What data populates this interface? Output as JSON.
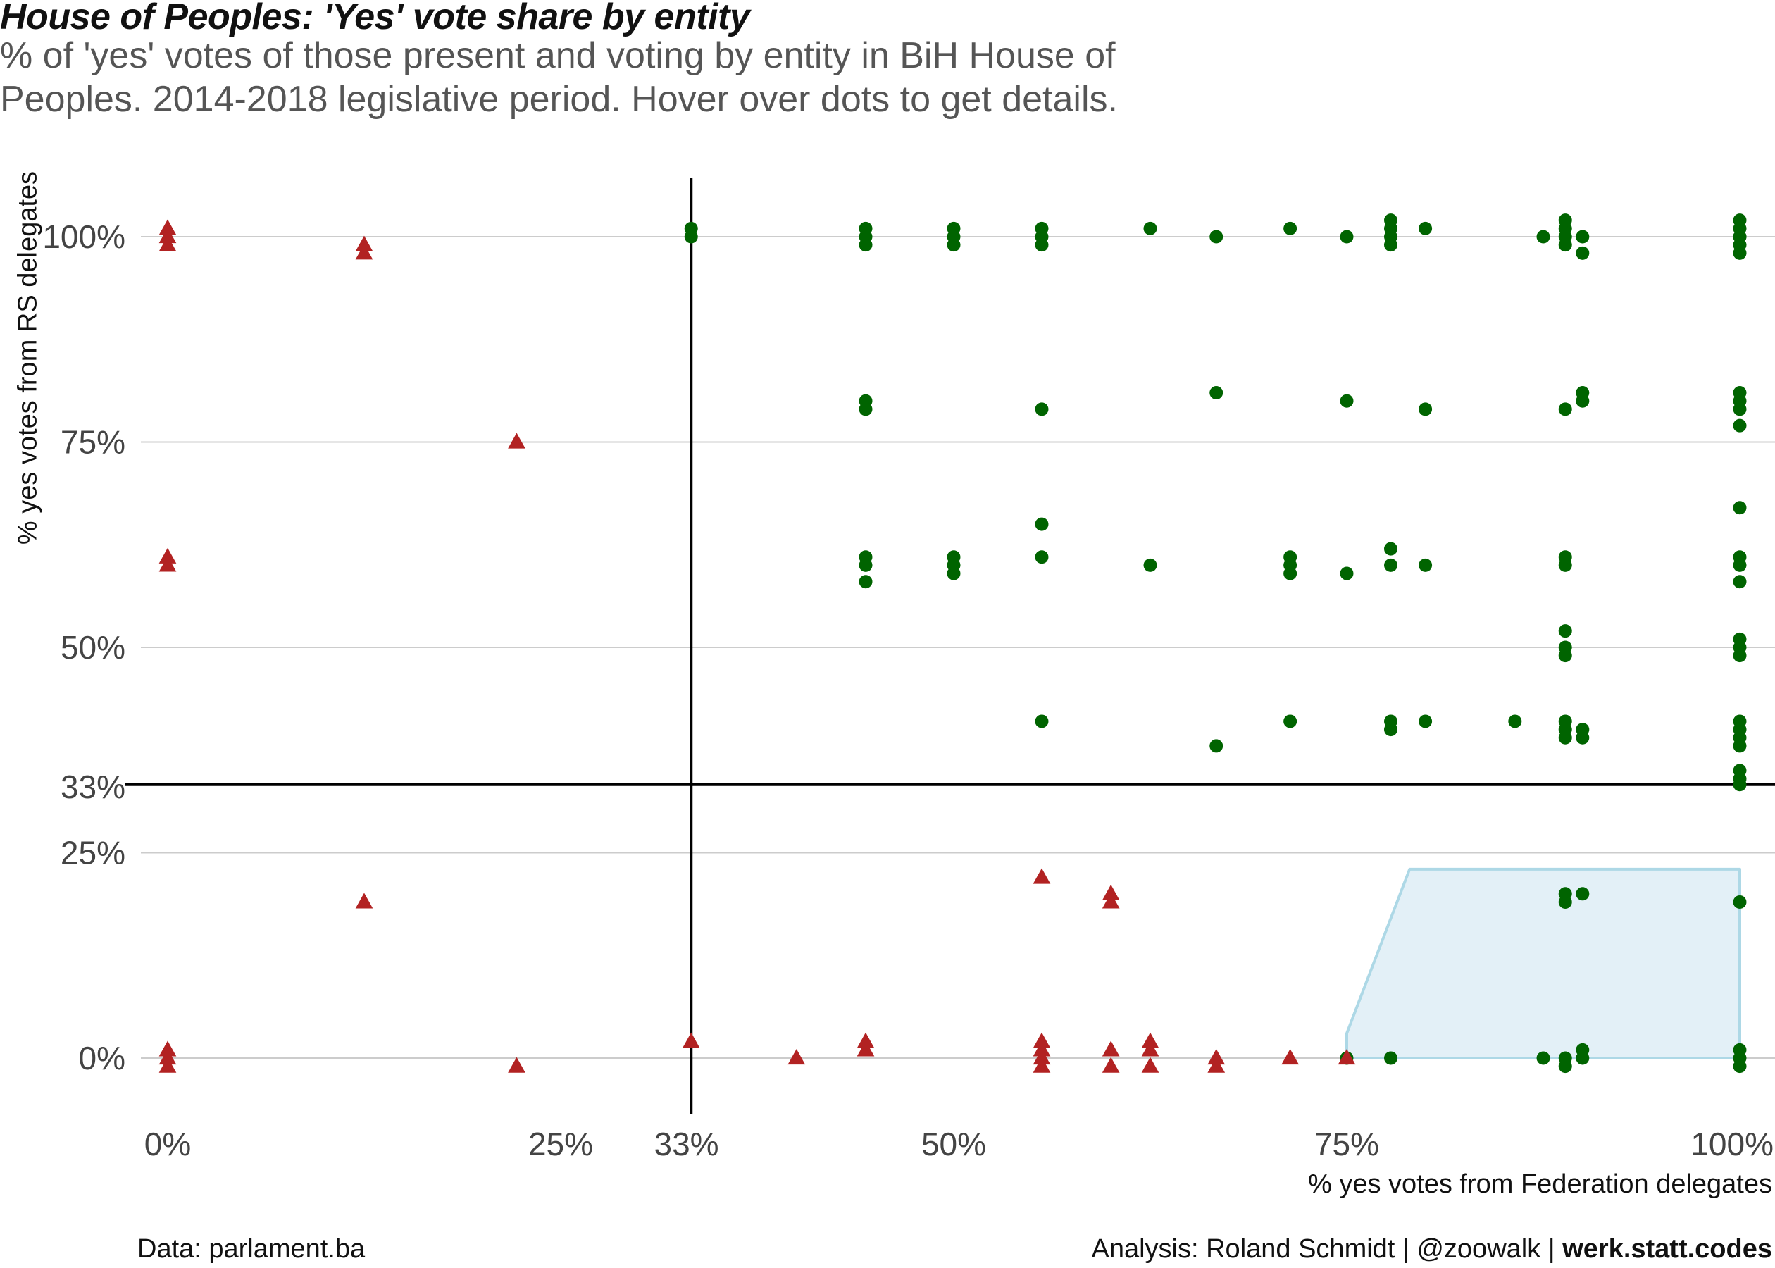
{
  "header": {
    "title": "House of Peoples: 'Yes' vote share by entity",
    "subtitle": "% of 'yes' votes of those present and voting by entity in BiH House of Peoples. 2014-2018 legislative period. Hover over dots to get details."
  },
  "footer": {
    "data_source": "Data: parlament.ba",
    "credit_prefix": "Analysis: Roland Schmidt | @zoowalk | ",
    "credit_site": "werk.statt.codes"
  },
  "chart_data": {
    "type": "scatter",
    "xlabel": "% yes votes from Federation delegates",
    "ylabel": "% yes votes from RS delegates",
    "x_ticks": [
      0,
      25,
      33,
      50,
      75,
      100
    ],
    "x_tick_labels": [
      "0%",
      "25%",
      "33%",
      "50%",
      "75%",
      "100%"
    ],
    "y_ticks": [
      0,
      25,
      33,
      50,
      75,
      100
    ],
    "y_tick_labels": [
      "0%",
      "25%",
      "33%",
      "50%",
      "75%",
      "100%"
    ],
    "xlim": [
      0,
      100
    ],
    "ylim": [
      0,
      100
    ],
    "grid": "horizontal",
    "threshold_lines": {
      "x": 33.3,
      "y": 33.3
    },
    "colors": {
      "passed": "#006400",
      "failed": "#b22222",
      "highlight_fill": "#e3f0f7",
      "highlight_stroke": "#add8e6",
      "threshold": "#000000",
      "grid": "#cccccc"
    },
    "highlight_region": [
      [
        79,
        23
      ],
      [
        100,
        23
      ],
      [
        100,
        0
      ],
      [
        75,
        0
      ],
      [
        75,
        3
      ]
    ],
    "series": [
      {
        "marker": "circle",
        "points": [
          [
            33.3,
            100
          ],
          [
            33.3,
            101
          ],
          [
            44.4,
            100
          ],
          [
            44.4,
            101
          ],
          [
            44.4,
            99
          ],
          [
            50,
            101
          ],
          [
            50,
            100
          ],
          [
            50,
            99
          ],
          [
            55.6,
            100
          ],
          [
            55.6,
            101
          ],
          [
            55.6,
            99
          ],
          [
            62.5,
            101
          ],
          [
            66.7,
            100
          ],
          [
            71.4,
            101
          ],
          [
            75,
            100
          ],
          [
            77.8,
            100
          ],
          [
            77.8,
            101
          ],
          [
            77.8,
            99
          ],
          [
            77.8,
            102
          ],
          [
            80,
            101
          ],
          [
            87.5,
            100
          ],
          [
            88.9,
            100
          ],
          [
            88.9,
            101
          ],
          [
            88.9,
            99
          ],
          [
            88.9,
            102
          ],
          [
            90,
            100
          ],
          [
            90,
            98
          ],
          [
            100,
            100
          ],
          [
            100,
            101
          ],
          [
            100,
            99
          ],
          [
            100,
            98
          ],
          [
            100,
            102
          ],
          [
            100,
            100
          ],
          [
            44.4,
            80
          ],
          [
            44.4,
            79
          ],
          [
            55.6,
            79
          ],
          [
            66.7,
            81
          ],
          [
            75,
            80
          ],
          [
            80,
            79
          ],
          [
            88.9,
            79
          ],
          [
            90,
            80
          ],
          [
            90,
            81
          ],
          [
            100,
            80
          ],
          [
            100,
            81
          ],
          [
            100,
            79
          ],
          [
            100,
            77
          ],
          [
            55.6,
            65
          ],
          [
            44.4,
            61
          ],
          [
            44.4,
            60
          ],
          [
            44.4,
            58
          ],
          [
            50,
            61
          ],
          [
            50,
            60
          ],
          [
            50,
            59
          ],
          [
            55.6,
            61
          ],
          [
            62.5,
            60
          ],
          [
            71.4,
            61
          ],
          [
            71.4,
            60
          ],
          [
            71.4,
            59
          ],
          [
            75,
            59
          ],
          [
            77.8,
            60
          ],
          [
            77.8,
            62
          ],
          [
            80,
            60
          ],
          [
            88.9,
            60
          ],
          [
            88.9,
            61
          ],
          [
            100,
            67
          ],
          [
            100,
            61
          ],
          [
            100,
            60
          ],
          [
            100,
            58
          ],
          [
            88.9,
            52
          ],
          [
            88.9,
            50
          ],
          [
            88.9,
            49
          ],
          [
            100,
            51
          ],
          [
            100,
            50
          ],
          [
            100,
            49
          ],
          [
            55.6,
            41
          ],
          [
            66.7,
            38
          ],
          [
            71.4,
            41
          ],
          [
            77.8,
            41
          ],
          [
            77.8,
            40
          ],
          [
            80,
            41
          ],
          [
            85.7,
            41
          ],
          [
            88.9,
            41
          ],
          [
            88.9,
            40
          ],
          [
            88.9,
            39
          ],
          [
            90,
            40
          ],
          [
            90,
            39
          ],
          [
            100,
            41
          ],
          [
            100,
            40
          ],
          [
            100,
            39
          ],
          [
            100,
            38
          ],
          [
            100,
            35
          ],
          [
            100,
            34
          ],
          [
            100,
            33.3
          ],
          [
            88.9,
            20
          ],
          [
            88.9,
            19
          ],
          [
            90,
            20
          ],
          [
            100,
            19
          ],
          [
            77.8,
            0
          ],
          [
            87.5,
            0
          ],
          [
            88.9,
            0
          ],
          [
            88.9,
            -1
          ],
          [
            90,
            1
          ],
          [
            90,
            0
          ],
          [
            100,
            1
          ],
          [
            100,
            0
          ],
          [
            100,
            -1
          ],
          [
            75,
            0
          ]
        ]
      },
      {
        "marker": "triangle",
        "points": [
          [
            0,
            100
          ],
          [
            0,
            101
          ],
          [
            0,
            99
          ],
          [
            12.5,
            99
          ],
          [
            12.5,
            98
          ],
          [
            22.2,
            75
          ],
          [
            0,
            61
          ],
          [
            0,
            60
          ],
          [
            12.5,
            19
          ],
          [
            55.6,
            22
          ],
          [
            60,
            20
          ],
          [
            60,
            19
          ],
          [
            0,
            0
          ],
          [
            0,
            1
          ],
          [
            0,
            -1
          ],
          [
            22.2,
            -1
          ],
          [
            33.3,
            2
          ],
          [
            40,
            0
          ],
          [
            44.4,
            2
          ],
          [
            44.4,
            1
          ],
          [
            55.6,
            2
          ],
          [
            55.6,
            1
          ],
          [
            55.6,
            0
          ],
          [
            55.6,
            -1
          ],
          [
            60,
            -1
          ],
          [
            60,
            1
          ],
          [
            62.5,
            -1
          ],
          [
            62.5,
            2
          ],
          [
            62.5,
            1
          ],
          [
            66.7,
            0
          ],
          [
            66.7,
            -1
          ],
          [
            71.4,
            0
          ],
          [
            75,
            0
          ]
        ]
      }
    ]
  }
}
